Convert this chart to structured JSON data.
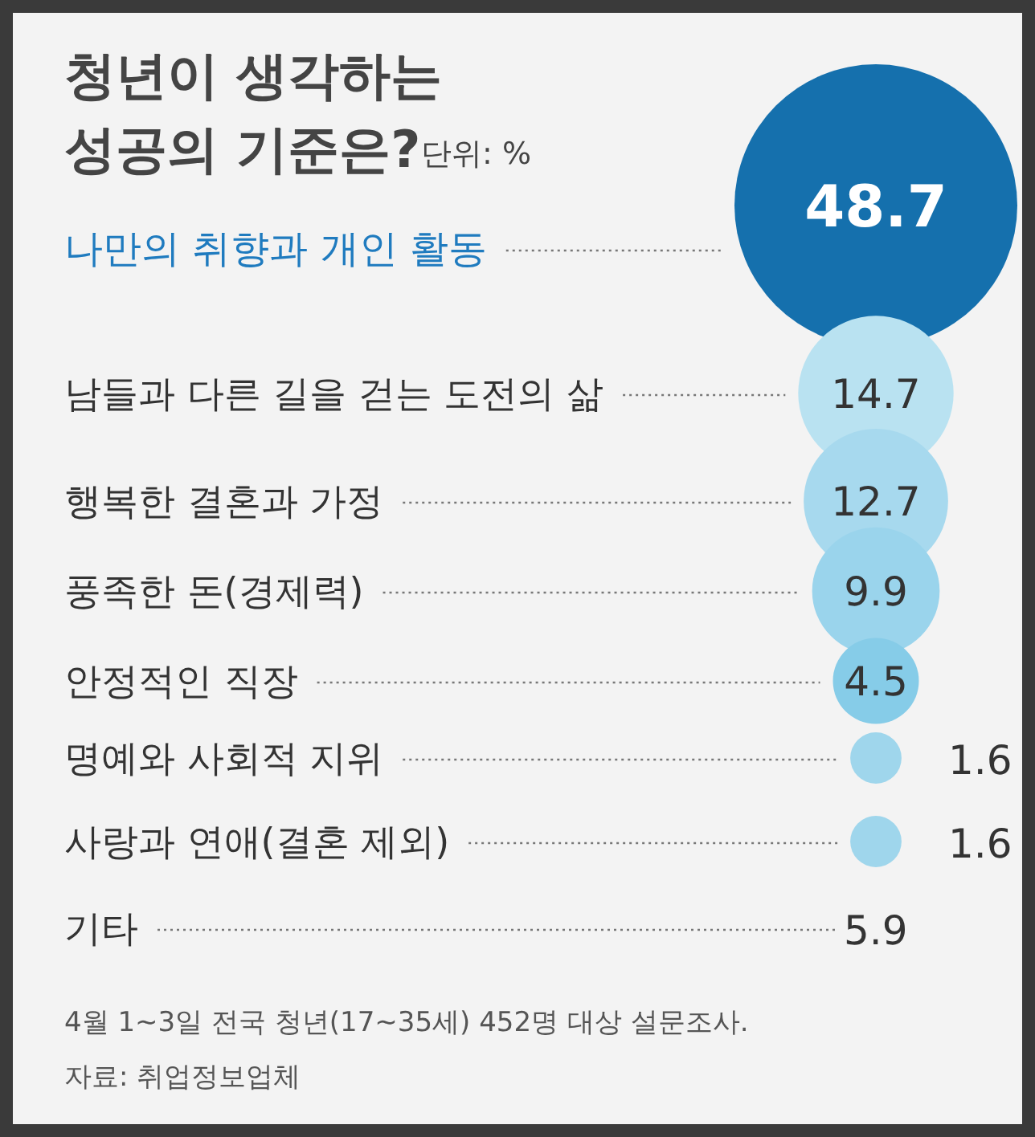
{
  "chart_data": {
    "type": "other",
    "title": "청년이 생각하는\n성공의 기준은?",
    "subtitle": "단위: %",
    "categories": [
      "나만의 취향과 개인 활동",
      "남들과 다른 길을 걷는 도전의 삶",
      "행복한 결혼과 가정",
      "풍족한 돈(경제력)",
      "안정적인 직장",
      "명예와 사회적 지위",
      "사랑과 연애(결혼 제외)",
      "기타"
    ],
    "values": [
      48.7,
      14.7,
      12.7,
      9.9,
      4.5,
      1.6,
      1.6,
      5.9
    ],
    "colors": [
      "#1570ad",
      "#b9e2f1",
      "#a7d9ee",
      "#9ad4ec",
      "#86cce8",
      "#9fd6ec",
      "#9fd6ec",
      null
    ],
    "data_labels": true,
    "annotations": [
      "4월 1~3일 전국 청년(17~35세) 452명 대상 설문조사.",
      "자료: 취업정보업체"
    ]
  }
}
